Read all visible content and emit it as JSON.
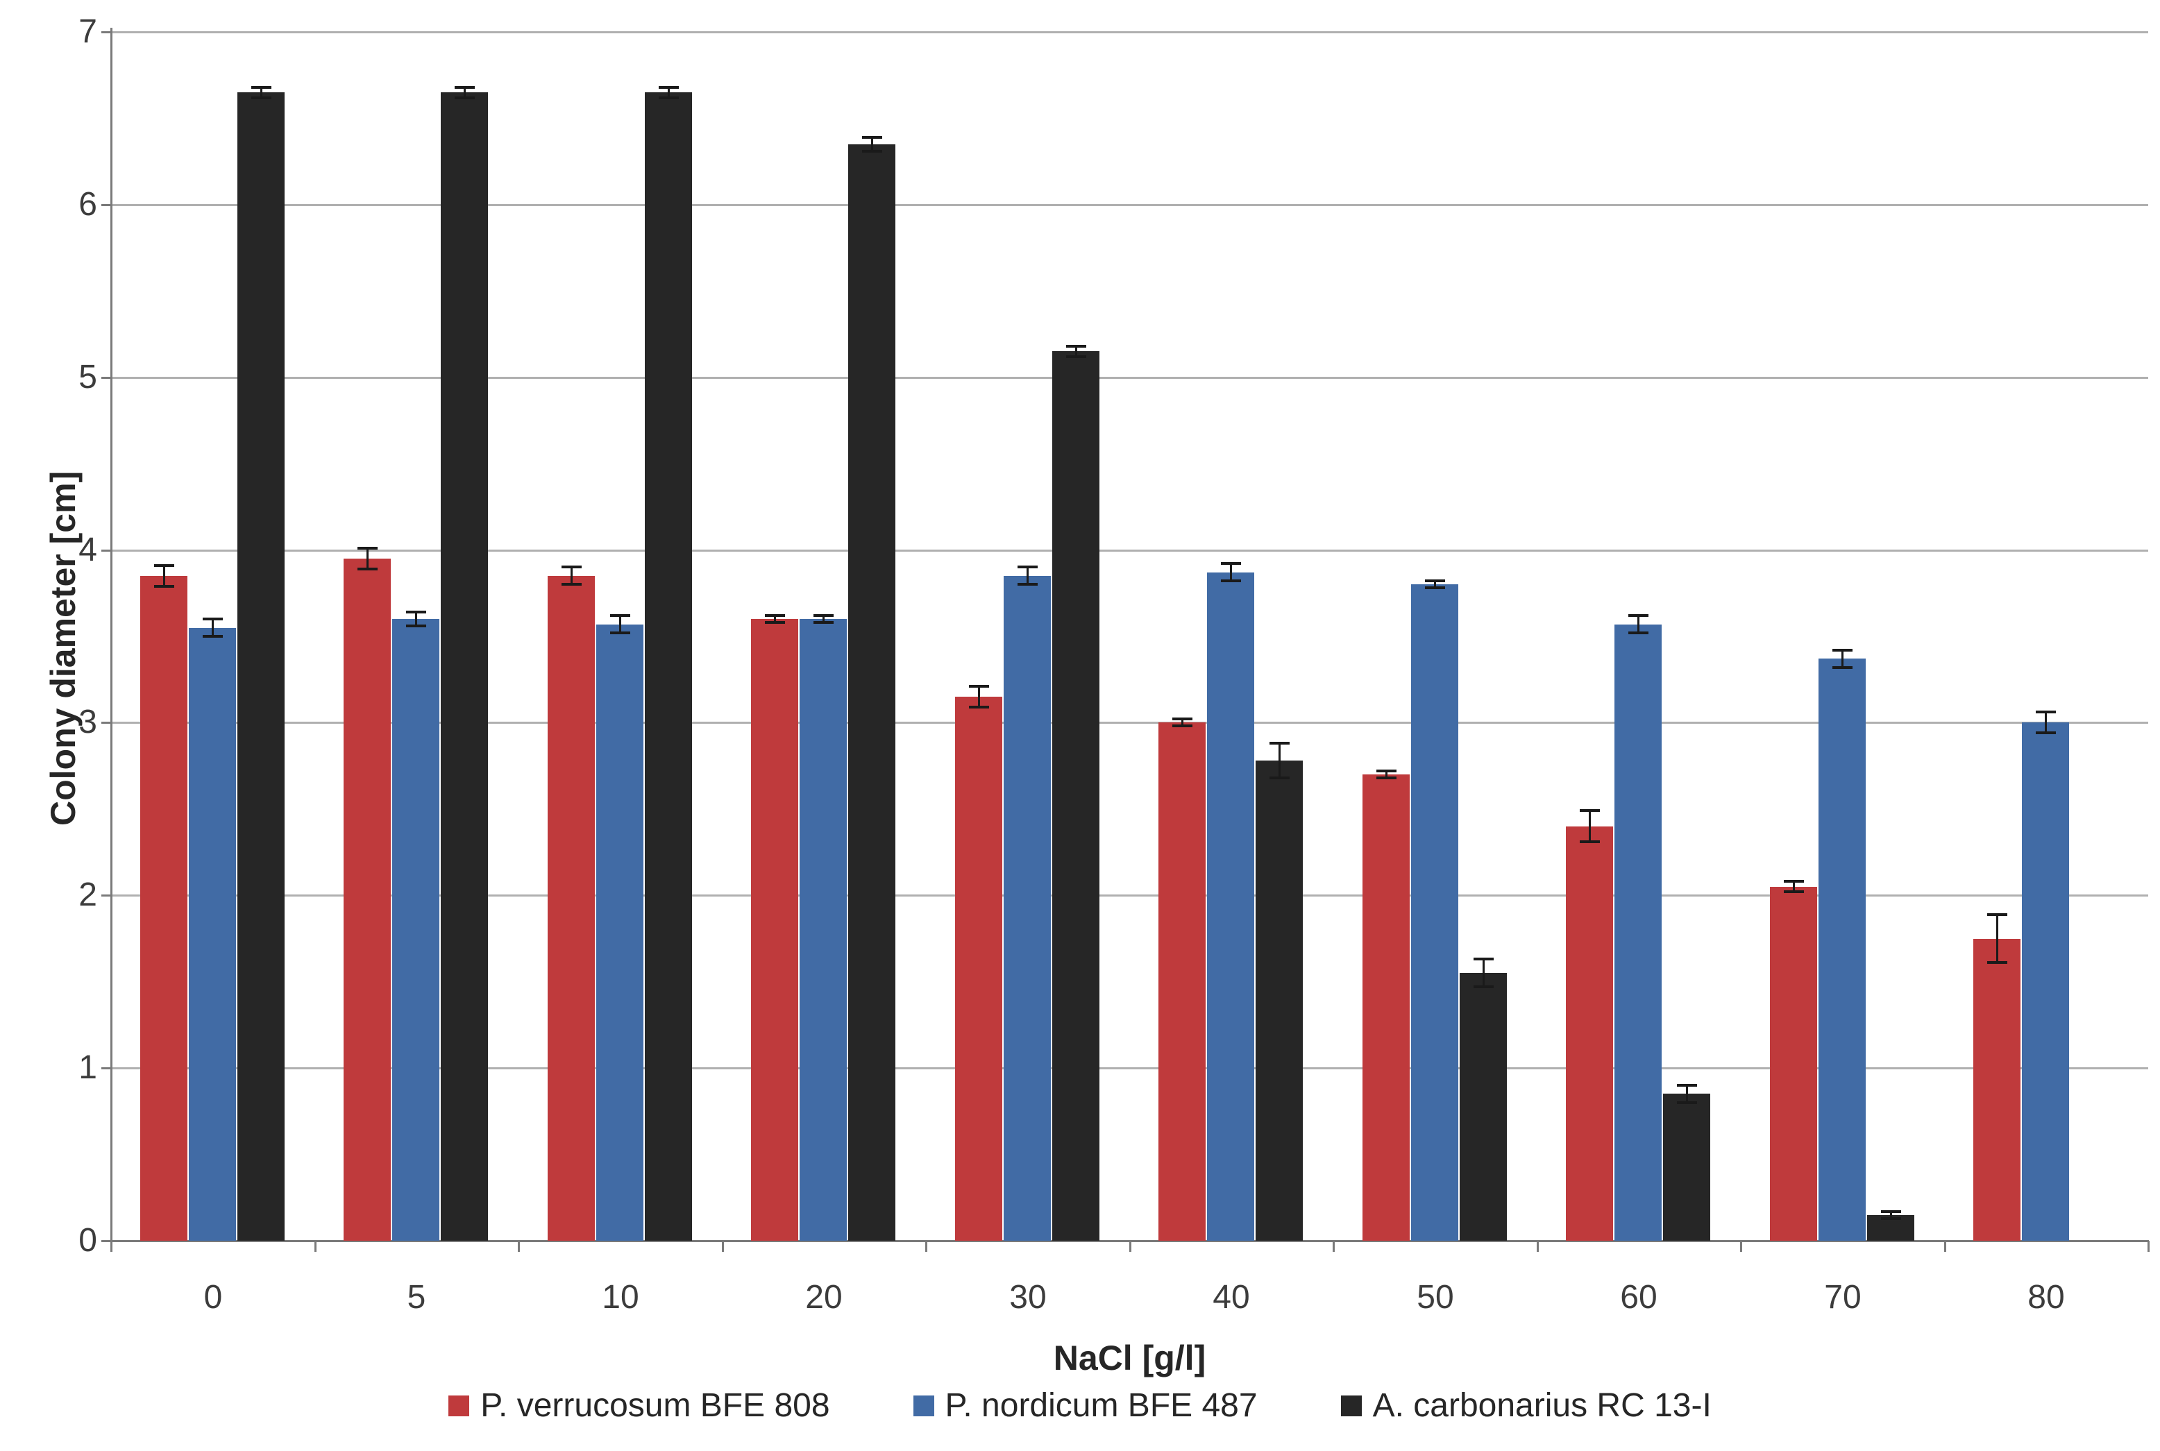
{
  "chart_data": {
    "type": "bar",
    "title": "",
    "xlabel": "NaCl [g/l]",
    "ylabel": "Colony diameter [cm]",
    "ylim": [
      0,
      7
    ],
    "yticks": [
      0,
      1,
      2,
      3,
      4,
      5,
      6,
      7
    ],
    "categories": [
      "0",
      "5",
      "10",
      "20",
      "30",
      "40",
      "50",
      "60",
      "70",
      "80"
    ],
    "grid": "horizontal",
    "legend_position": "bottom",
    "series": [
      {
        "name": "P. verrucosum BFE 808",
        "color": "#bf3a3c",
        "values": [
          3.85,
          3.95,
          3.85,
          3.6,
          3.15,
          3.0,
          2.7,
          2.4,
          2.05,
          1.75
        ],
        "errors": [
          0.06,
          0.06,
          0.05,
          0.02,
          0.06,
          0.02,
          0.02,
          0.09,
          0.03,
          0.14
        ]
      },
      {
        "name": "P. nordicum BFE 487",
        "color": "#416ba5",
        "values": [
          3.55,
          3.6,
          3.57,
          3.6,
          3.85,
          3.87,
          3.8,
          3.57,
          3.37,
          3.0
        ],
        "errors": [
          0.05,
          0.04,
          0.05,
          0.02,
          0.05,
          0.05,
          0.02,
          0.05,
          0.05,
          0.06
        ]
      },
      {
        "name": "A. carbonarius RC 13-I",
        "color": "#262626",
        "values": [
          6.65,
          6.65,
          6.65,
          6.35,
          5.15,
          2.78,
          1.55,
          0.85,
          0.15,
          0
        ],
        "errors": [
          0.03,
          0.03,
          0.03,
          0.04,
          0.03,
          0.1,
          0.08,
          0.05,
          0.02,
          0
        ]
      }
    ]
  },
  "palette": {
    "gridline": "#b0b0b0",
    "axis": "#7a7a7a",
    "error_bar": "#1a1a1a",
    "tick_text": "#3c3c3c",
    "title_text": "#262626",
    "background": "#ffffff"
  }
}
